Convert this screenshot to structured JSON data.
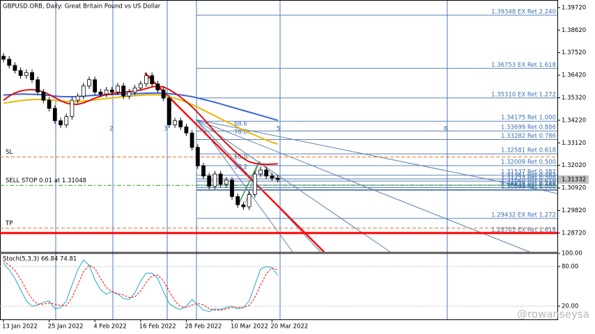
{
  "chart_data": [
    {
      "type": "candlestick",
      "title": "GBPUSD.ORB, Daily:  Great Britain Pound vs US Dollar",
      "categories": [
        "13 Jan 2022",
        null,
        null,
        null,
        null,
        null,
        null,
        null,
        "25 Jan 2022",
        null,
        null,
        null,
        null,
        null,
        null,
        null,
        "4 Feb 2022",
        null,
        null,
        null,
        null,
        null,
        null,
        null,
        "16 Feb 2022",
        null,
        null,
        null,
        null,
        null,
        null,
        null,
        "28 Feb 2022",
        null,
        null,
        null,
        null,
        null,
        null,
        null,
        "10 Mar 2022",
        null,
        null,
        null,
        null,
        null,
        null,
        "20 Mar 2022",
        null
      ],
      "open": [
        1.3735,
        1.372,
        1.369,
        1.3665,
        1.364,
        1.3655,
        1.362,
        1.356,
        1.352,
        1.348,
        1.342,
        1.34,
        1.344,
        1.352,
        1.354,
        1.359,
        1.362,
        1.356,
        1.355,
        1.357,
        1.356,
        1.359,
        1.354,
        1.356,
        1.358,
        1.36,
        1.364,
        1.36,
        1.357,
        1.353,
        1.34,
        1.342,
        1.339,
        1.336,
        1.329,
        1.32,
        1.315,
        1.31,
        1.316,
        1.311,
        1.313,
        1.305,
        1.301,
        1.3,
        1.306,
        1.316,
        1.318,
        1.315,
        1.314
      ],
      "high": [
        1.375,
        1.3735,
        1.3705,
        1.368,
        1.367,
        1.367,
        1.3635,
        1.3575,
        1.3535,
        1.3495,
        1.3435,
        1.3455,
        1.3535,
        1.3555,
        1.3605,
        1.3635,
        1.3635,
        1.3575,
        1.3585,
        1.3585,
        1.3605,
        1.3605,
        1.3575,
        1.3595,
        1.3615,
        1.3655,
        1.3655,
        1.3615,
        1.3585,
        1.3545,
        1.3435,
        1.3435,
        1.3405,
        1.3375,
        1.3305,
        1.3215,
        1.3165,
        1.3175,
        1.3175,
        1.3145,
        1.3145,
        1.3065,
        1.3025,
        1.3075,
        1.3175,
        1.3195,
        1.3195,
        1.3165,
        1.3155
      ],
      "low": [
        1.3705,
        1.3675,
        1.365,
        1.3625,
        1.3625,
        1.3605,
        1.3545,
        1.3505,
        1.3465,
        1.3405,
        1.3385,
        1.3385,
        1.3425,
        1.3505,
        1.3525,
        1.3575,
        1.3545,
        1.3535,
        1.3535,
        1.3545,
        1.3545,
        1.3525,
        1.3525,
        1.3545,
        1.3565,
        1.3585,
        1.3585,
        1.3555,
        1.3515,
        1.3385,
        1.3385,
        1.3375,
        1.3345,
        1.3275,
        1.3185,
        1.3135,
        1.3085,
        1.3085,
        1.3095,
        1.3095,
        1.3035,
        1.2995,
        1.2985,
        1.2985,
        1.3045,
        1.3145,
        1.3135,
        1.3125,
        1.3118
      ],
      "close": [
        1.372,
        1.369,
        1.3665,
        1.364,
        1.3655,
        1.362,
        1.356,
        1.352,
        1.348,
        1.342,
        1.34,
        1.344,
        1.352,
        1.354,
        1.359,
        1.362,
        1.356,
        1.355,
        1.357,
        1.356,
        1.359,
        1.354,
        1.356,
        1.358,
        1.36,
        1.364,
        1.36,
        1.357,
        1.353,
        1.34,
        1.342,
        1.339,
        1.336,
        1.329,
        1.32,
        1.315,
        1.31,
        1.316,
        1.311,
        1.313,
        1.305,
        1.301,
        1.3,
        1.306,
        1.316,
        1.318,
        1.315,
        1.314,
        1.3133
      ],
      "up_color": "#ffffff",
      "down_color": "#000000",
      "moving_averages": [
        {
          "color": "#3a62d8",
          "values": [
            1.3545,
            1.3547,
            1.3549,
            1.355,
            1.355,
            1.3549,
            1.3548,
            1.3546,
            1.3543,
            1.354,
            1.3538,
            1.3537,
            1.3537,
            1.3538,
            1.354,
            1.3542,
            1.3544,
            1.3546,
            1.3547,
            1.3548,
            1.3549,
            1.355,
            1.3551,
            1.3552,
            1.3553,
            1.3554,
            1.3555,
            1.3555,
            1.3554,
            1.3552,
            1.3549,
            1.3546,
            1.3542,
            1.3537,
            1.3531,
            1.3524,
            1.3517,
            1.351,
            1.3502,
            1.3494,
            1.3486,
            1.3478,
            1.347,
            1.3462,
            1.3454,
            1.3446,
            1.3438,
            1.343,
            1.3422
          ]
        },
        {
          "color": "#e8b800",
          "values": [
            1.3505,
            1.351,
            1.3514,
            1.3518,
            1.3521,
            1.3523,
            1.3524,
            1.3524,
            1.3522,
            1.3519,
            1.3516,
            1.3514,
            1.3513,
            1.3514,
            1.3516,
            1.3519,
            1.3522,
            1.3525,
            1.3528,
            1.3531,
            1.3534,
            1.3537,
            1.354,
            1.3542,
            1.3544,
            1.3546,
            1.3547,
            1.3546,
            1.3543,
            1.3537,
            1.353,
            1.3521,
            1.3511,
            1.3499,
            1.3486,
            1.3472,
            1.3458,
            1.3444,
            1.343,
            1.3416,
            1.3402,
            1.3388,
            1.3374,
            1.3362,
            1.335,
            1.3338,
            1.3326,
            1.3315,
            1.3305
          ]
        },
        {
          "color": "#e01010",
          "values": [
            1.352,
            1.354,
            1.3555,
            1.3565,
            1.357,
            1.3572,
            1.3568,
            1.356,
            1.3548,
            1.3533,
            1.3518,
            1.3506,
            1.35,
            1.35,
            1.3507,
            1.3518,
            1.353,
            1.354,
            1.3547,
            1.3552,
            1.3556,
            1.3559,
            1.3562,
            1.3565,
            1.357,
            1.3577,
            1.3585,
            1.3588,
            1.3585,
            1.3572,
            1.3555,
            1.3535,
            1.3513,
            1.3488,
            1.346,
            1.343,
            1.3398,
            1.3367,
            1.3338,
            1.331,
            1.3283,
            1.3258,
            1.3236,
            1.322,
            1.3212,
            1.3208,
            1.3207,
            1.3208,
            1.321
          ]
        }
      ],
      "ylim": [
        1.278,
        1.4009
      ],
      "yticks": [
        {
          "value": 1.3972,
          "label": "1.39720"
        },
        {
          "value": 1.3862,
          "label": "1.38620"
        },
        {
          "value": 1.3752,
          "label": "1.37520"
        },
        {
          "value": 1.3642,
          "label": "1.36420"
        },
        {
          "value": 1.3532,
          "label": "1.35320"
        },
        {
          "value": 1.3422,
          "label": "1.34220"
        },
        {
          "value": 1.3312,
          "label": "1.33120"
        },
        {
          "value": 1.3202,
          "label": "1.32020"
        },
        {
          "value": 1.3092,
          "label": "1.30920"
        },
        {
          "value": 1.2982,
          "label": "1.29820"
        },
        {
          "value": 1.2872,
          "label": "1.28720"
        }
      ],
      "current_price": 1.31332,
      "fib_levels": [
        {
          "value": 1.39348,
          "label": "1.39348 EX Ret 2.240"
        },
        {
          "value": 1.36753,
          "label": "1.36753 EX Ret 1.618"
        },
        {
          "value": 1.3531,
          "label": "1.35310 EX Ret 1.272"
        },
        {
          "value": 1.34175,
          "label": "1.34175 Ret 1.000"
        },
        {
          "value": 1.33699,
          "label": "1.33699 Ret 0.886"
        },
        {
          "value": 1.33282,
          "label": "1.33282 Ret 0.786"
        },
        {
          "value": 1.32581,
          "label": "1.32581 Ret 0.618"
        },
        {
          "value": 1.32009,
          "label": "1.32009 Ret 0.500"
        },
        {
          "value": 1.31537,
          "label": "1.31537 Ret 0.382"
        },
        {
          "value": 1.31361,
          "label": "1.31361 Ret 0.382"
        },
        {
          "value": 1.31253,
          "label": "1.31253 Ret 0.500"
        },
        {
          "value": 1.3106,
          "label": "1.31060 Ret 0.618"
        },
        {
          "value": 1.30939,
          "label": "1.30939 Ret 0.786"
        },
        {
          "value": 1.30843,
          "label": "1.30843 Ret 0.886"
        },
        {
          "value": 1.30803,
          "label": "1.30803 Ret 1.000"
        },
        {
          "value": 1.29432,
          "label": "1.29432 EX Ret 1.272"
        },
        {
          "value": 1.28705,
          "label": "1.28705 EX Ret 1.618"
        }
      ],
      "fan_labels": [
        "88.6",
        "78.6",
        "50.0",
        "38.2"
      ],
      "wave_labels": [
        "2",
        "3",
        "5",
        "6"
      ],
      "order_lines": [
        {
          "label": "SL",
          "value": 1.3243,
          "color": "#e07020"
        },
        {
          "label": "SELL STOP 0.01 at 1.31048",
          "value": 1.31048,
          "color": "#2e9a2e"
        },
        {
          "label": "TP",
          "value": 1.2896,
          "color": "#e07020"
        }
      ],
      "support_line": {
        "value": 1.2872,
        "color": "#ff0000"
      },
      "watermark": "@rowanseysa"
    },
    {
      "type": "line",
      "title": "Stoch(5,3,3) 66.84 74.81",
      "series": [
        {
          "color": "#20a8c8",
          "dash": false,
          "values": [
            85,
            75,
            62,
            45,
            28,
            20,
            22,
            26,
            28,
            16,
            18,
            28,
            52,
            75,
            90,
            82,
            60,
            45,
            38,
            42,
            38,
            32,
            30,
            40,
            58,
            70,
            70,
            62,
            42,
            24,
            18,
            15,
            20,
            30,
            22,
            14,
            12,
            16,
            15,
            18,
            20,
            16,
            18,
            28,
            52,
            76,
            80,
            78,
            66.84
          ]
        },
        {
          "color": "#ff0000",
          "dash": true,
          "values": [
            88,
            82,
            74,
            61,
            45,
            31,
            23,
            23,
            25,
            23,
            21,
            21,
            33,
            52,
            72,
            82,
            77,
            62,
            48,
            42,
            39,
            37,
            33,
            34,
            43,
            56,
            66,
            67,
            58,
            43,
            28,
            19,
            18,
            22,
            24,
            22,
            16,
            14,
            14,
            16,
            18,
            18,
            18,
            21,
            33,
            52,
            69,
            78,
            74.81
          ]
        }
      ],
      "ylim": [
        0,
        100
      ],
      "yticks": [
        {
          "value": 100,
          "label": "100.00"
        },
        {
          "value": 80,
          "label": "80.00"
        },
        {
          "value": 20,
          "label": "20.00"
        }
      ]
    }
  ]
}
